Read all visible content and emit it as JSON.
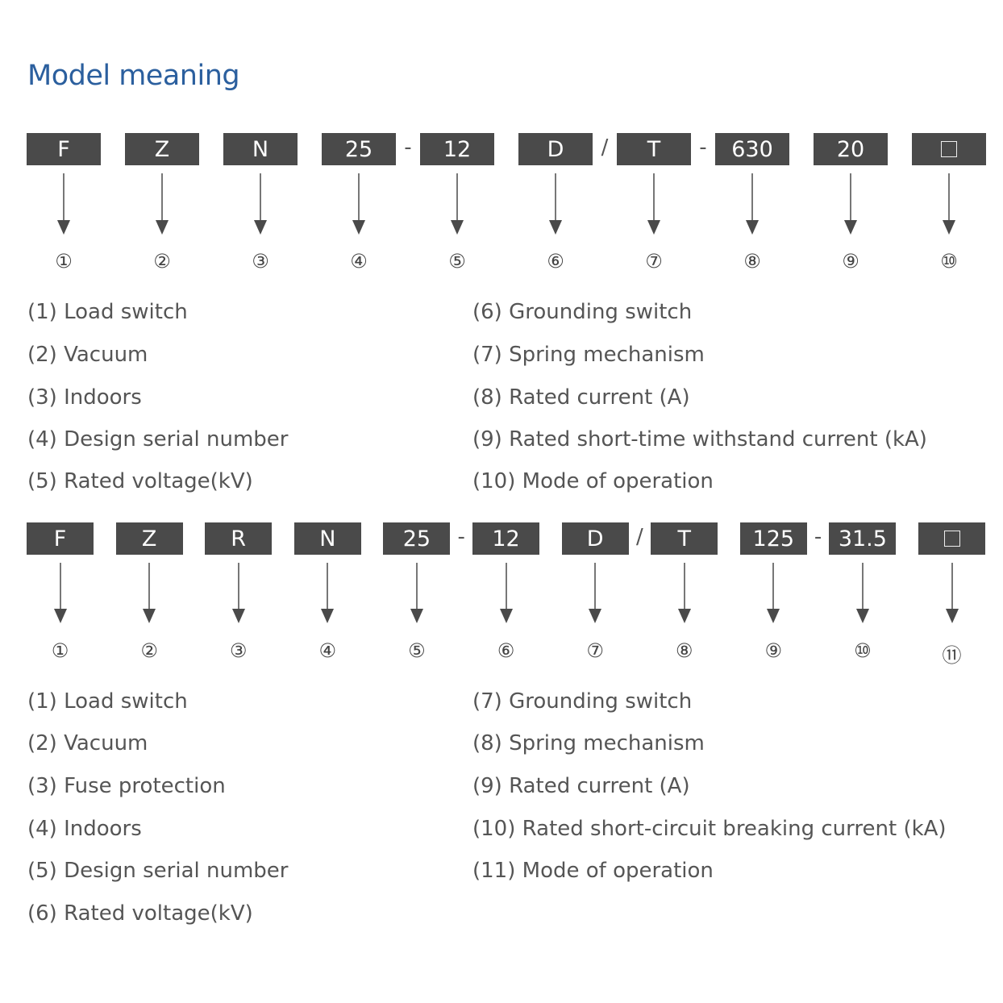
{
  "title": "Model meaning",
  "diagrams": [
    {
      "codes": [
        "F",
        "Z",
        "N",
        "25",
        "12",
        "D",
        "T",
        "630",
        "20",
        "□"
      ],
      "separators": {
        "3": "-",
        "5": "/",
        "6": "-"
      },
      "markers": [
        "①",
        "②",
        "③",
        "④",
        "⑤",
        "⑥",
        "⑦",
        "⑧",
        "⑨",
        "⑩"
      ],
      "legend_left": [
        "(1) Load switch",
        "(2) Vacuum",
        "(3) Indoors",
        "(4) Design serial number",
        "(5) Rated voltage(kV)"
      ],
      "legend_right": [
        "(6) Grounding switch",
        "(7) Spring mechanism",
        "(8) Rated current (A)",
        "(9) Rated short-time withstand current (kA)",
        "(10) Mode of operation"
      ]
    },
    {
      "codes": [
        "F",
        "Z",
        "R",
        "N",
        "25",
        "12",
        "D",
        "T",
        "125",
        "31.5",
        "□"
      ],
      "separators": {
        "4": "-",
        "6": "/",
        "8": "-"
      },
      "markers": [
        "①",
        "②",
        "③",
        "④",
        "⑤",
        "⑥",
        "⑦",
        "⑧",
        "⑨",
        "⑩",
        "⑪"
      ],
      "legend_left": [
        "(1) Load switch",
        "(2) Vacuum",
        "(3) Fuse protection",
        "(4) Indoors",
        "(5) Design serial number",
        "(6) Rated voltage(kV)"
      ],
      "legend_right": [
        "(7) Grounding switch",
        "(8) Spring mechanism",
        "(9) Rated current (A)",
        "(10) Rated short-circuit breaking current (kA)",
        "(11) Mode of operation"
      ]
    }
  ],
  "colors": {
    "title": "#2b5f9e",
    "box": "#4a4a4a",
    "text": "#555555"
  }
}
